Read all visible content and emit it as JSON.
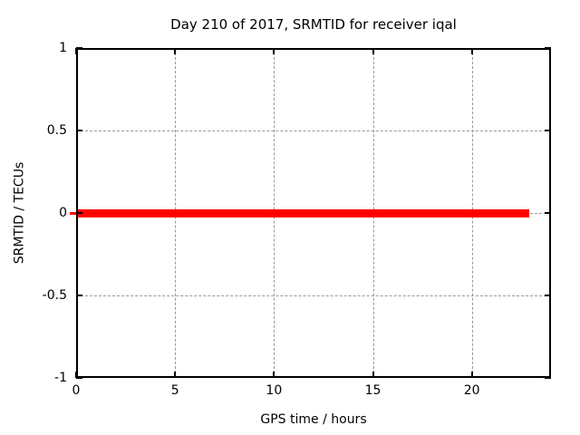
{
  "chart_data": {
    "type": "line",
    "title": "Day 210 of 2017, SRMTID for receiver iqal",
    "xlabel": "GPS time / hours",
    "ylabel": "SRMTID / TECUs",
    "xlim": [
      0,
      24
    ],
    "ylim": [
      -1,
      1
    ],
    "xticks": [
      0,
      5,
      10,
      15,
      20
    ],
    "yticks": [
      -1,
      -0.5,
      0,
      0.5,
      1
    ],
    "grid": true,
    "legend": "none",
    "series": [
      {
        "name": "SRMTID",
        "color": "#ff0000",
        "x": [
          0,
          22.9
        ],
        "y": [
          0,
          0
        ]
      }
    ]
  },
  "colors": {
    "background": "#ffffff",
    "frame": "#000000",
    "grid": "#999999",
    "text": "#000000",
    "series": "#ff0000"
  }
}
